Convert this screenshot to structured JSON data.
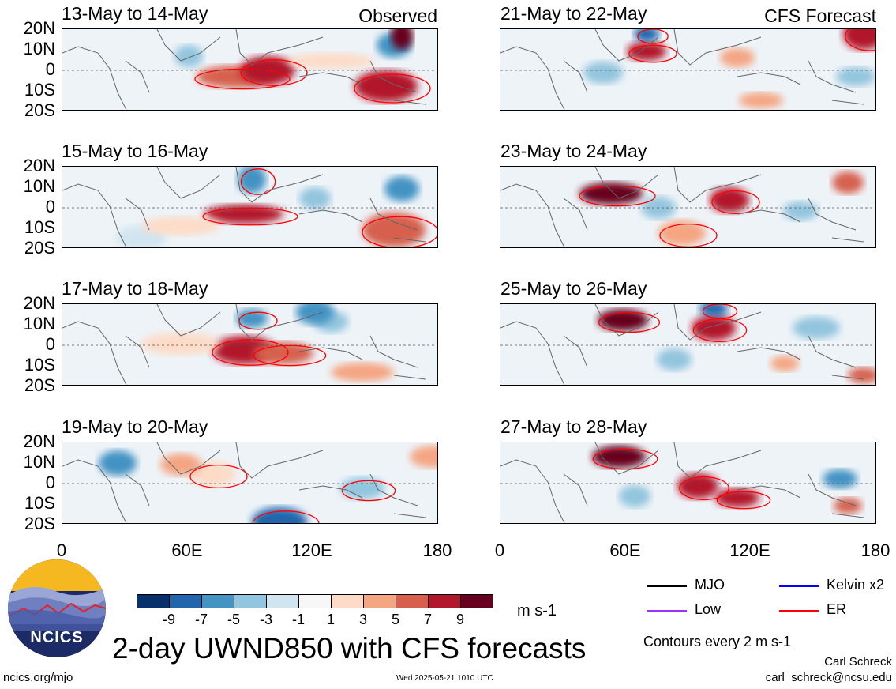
{
  "chart_data": {
    "type": "heatmap",
    "title": "2-day UWND850 with CFS forecasts",
    "variable": "UWND850",
    "units": "m s-1",
    "observed_label": "Observed",
    "forecast_label": "CFS Forecast",
    "lat_ticks": [
      "20N",
      "10N",
      "0",
      "10S",
      "20S"
    ],
    "lon_ticks": [
      "0",
      "60E",
      "120E",
      "180"
    ],
    "ylim": [
      -20,
      20
    ],
    "xlim": [
      0,
      180
    ],
    "panels": [
      {
        "period": "13-May to 14-May",
        "source": "Observed"
      },
      {
        "period": "15-May to 16-May",
        "source": "Observed"
      },
      {
        "period": "17-May to 18-May",
        "source": "Observed"
      },
      {
        "period": "19-May to 20-May",
        "source": "Observed"
      },
      {
        "period": "21-May to 22-May",
        "source": "CFS Forecast"
      },
      {
        "period": "23-May to 24-May",
        "source": "CFS Forecast"
      },
      {
        "period": "25-May to 26-May",
        "source": "CFS Forecast"
      },
      {
        "period": "27-May to 28-May",
        "source": "CFS Forecast"
      }
    ],
    "colorbar": {
      "levels": [
        "-9",
        "-7",
        "-5",
        "-3",
        "-1",
        "1",
        "3",
        "5",
        "7",
        "9"
      ],
      "colors": [
        "#08306b",
        "#2166ac",
        "#4393c3",
        "#92c5de",
        "#d1e5f0",
        "#f7f7f7",
        "#fddbc7",
        "#f4a582",
        "#d6604d",
        "#b2182b",
        "#67001f"
      ]
    },
    "legend": [
      {
        "name": "MJO",
        "color": "#000000"
      },
      {
        "name": "Kelvin x2",
        "color": "#0000ff"
      },
      {
        "name": "Low",
        "color": "#9933ff"
      },
      {
        "name": "ER",
        "color": "#ff0000"
      }
    ],
    "contour_note": "Contours every 2 m s-1"
  },
  "footer": {
    "website": "ncics.org/mjo",
    "timestamp": "Wed 2025-05-21 1010 UTC",
    "author": "Carl Schreck",
    "email": "carl_schreck@ncsu.edu"
  },
  "logo": {
    "text": "NCICS"
  }
}
